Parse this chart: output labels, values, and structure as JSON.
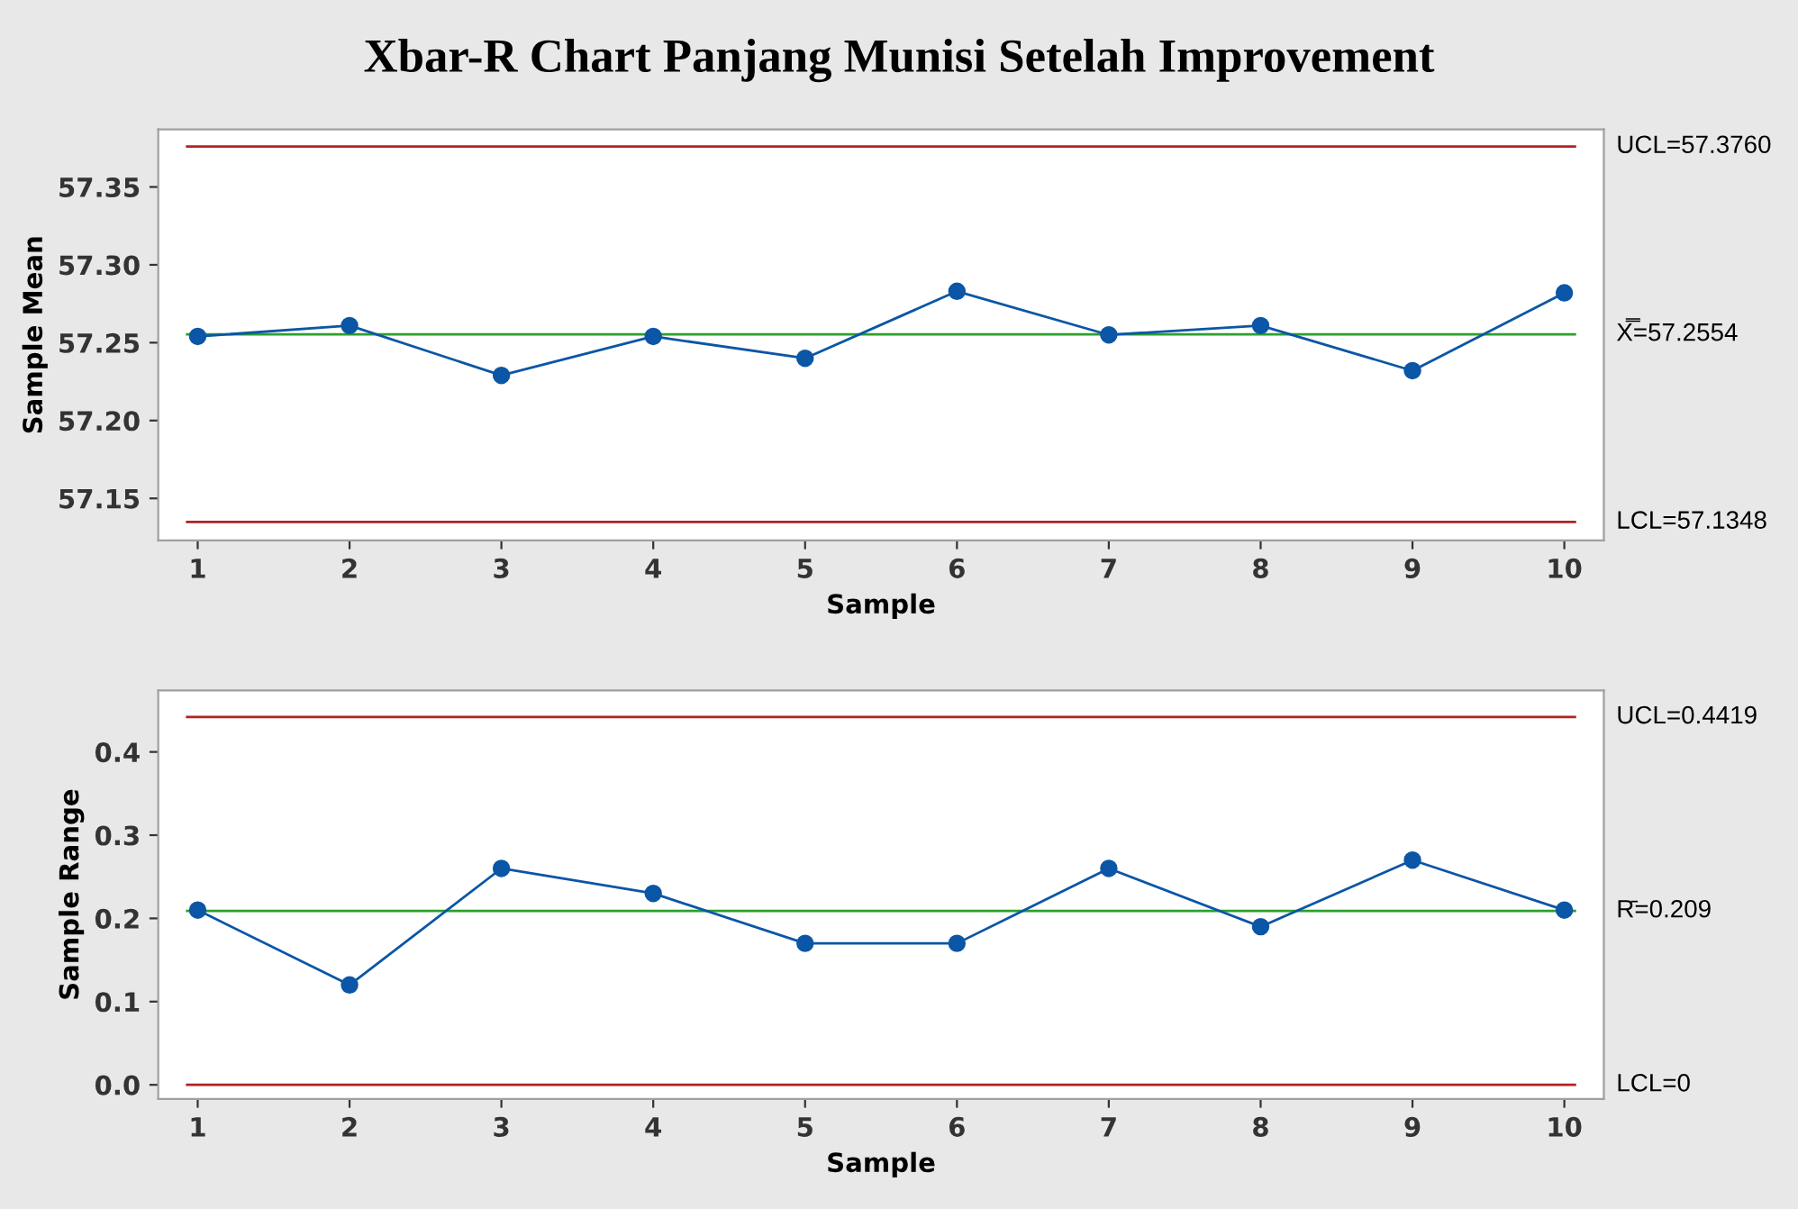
{
  "chart_data": [
    {
      "type": "line",
      "title": "Xbar-R Chart Panjang Munisi Setelah Improvement",
      "xlabel": "Sample",
      "ylabel": "Sample Mean",
      "x": [
        1,
        2,
        3,
        4,
        5,
        6,
        7,
        8,
        9,
        10
      ],
      "series": [
        {
          "color": "#0b56a6",
          "values": [
            57.254,
            57.261,
            57.229,
            57.254,
            57.24,
            57.283,
            57.255,
            57.261,
            57.232,
            57.282
          ]
        }
      ],
      "xlim": [
        0.74,
        10.26
      ],
      "xticks": [
        1,
        2,
        3,
        4,
        5,
        6,
        7,
        8,
        9,
        10
      ],
      "ylim": [
        57.123,
        57.387
      ],
      "yticks": [
        57.15,
        {
          "value": 57.2,
          "label": "57.20"
        },
        57.25,
        {
          "value": 57.3,
          "label": "57.30"
        },
        57.35
      ],
      "ref_lines": [
        {
          "axis": "y",
          "value": 57.376,
          "label": "UCL=57.3760",
          "color": "#b22222"
        },
        {
          "axis": "y",
          "value": 57.2554,
          "label": "X̿=57.2554",
          "color": "#2ca02c"
        },
        {
          "axis": "y",
          "value": 57.1348,
          "label": "LCL=57.1348",
          "color": "#b22222"
        }
      ],
      "marker": "circle",
      "line_style": "solid",
      "grid": false,
      "legend": false
    },
    {
      "type": "line",
      "xlabel": "Sample",
      "ylabel": "Sample Range",
      "x": [
        1,
        2,
        3,
        4,
        5,
        6,
        7,
        8,
        9,
        10
      ],
      "series": [
        {
          "color": "#0b56a6",
          "values": [
            0.21,
            0.12,
            0.26,
            0.23,
            0.17,
            0.17,
            0.26,
            0.19,
            0.27,
            0.21
          ]
        }
      ],
      "xlim": [
        0.74,
        10.26
      ],
      "xticks": [
        1,
        2,
        3,
        4,
        5,
        6,
        7,
        8,
        9,
        10
      ],
      "ylim": [
        -0.017,
        0.474
      ],
      "yticks": [
        {
          "value": 0,
          "label": "0.0"
        },
        0.1,
        0.2,
        0.3,
        0.4
      ],
      "ref_lines": [
        {
          "axis": "y",
          "value": 0.4419,
          "label": "UCL=0.4419",
          "color": "#b22222"
        },
        {
          "axis": "y",
          "value": 0.209,
          "label": "R̄=0.209",
          "color": "#2ca02c"
        },
        {
          "axis": "y",
          "value": 0,
          "label": "LCL=0",
          "color": "#b22222"
        }
      ],
      "marker": "circle",
      "line_style": "solid",
      "grid": false,
      "legend": false
    }
  ]
}
